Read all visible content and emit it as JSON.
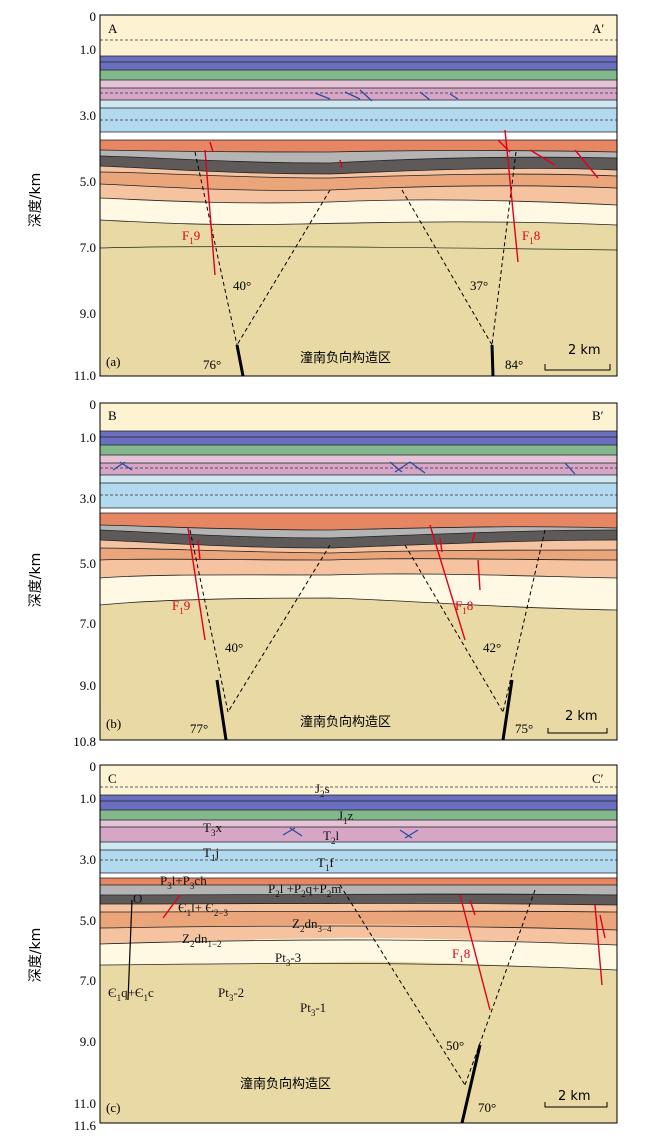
{
  "y_axis_label": "深度/km",
  "region_label": "潼南负向构造区",
  "scale_label": "2 km",
  "colors": {
    "J2s": "#fdf3d3",
    "J1z_top": "#7b7fc4",
    "J1z": "#6a6fbf",
    "J1z_g": "#82b88c",
    "T3x": "#e5c3d6",
    "T2l": "#d6a6c6",
    "T1j": "#cfe7f3",
    "T1f": "#b2d9ed",
    "P3": "#e68663",
    "P2": "#b4b4b4",
    "dark": "#5e5a5a",
    "Z2dn34": "#f6c3a1",
    "Z2dn12": "#eaa57b",
    "Pt3_3": "#fff9e3",
    "Pt3_2": "#faeecd",
    "Pt3_1": "#e8d9a5",
    "fault": "#e0001b",
    "thrust": "#2c4c9a"
  },
  "panels": [
    {
      "id": "a",
      "left_label": "A",
      "right_label": "A′",
      "panel_label": "(a)",
      "ticks": [
        "0",
        "1.0",
        "3.0",
        "5.0",
        "7.0",
        "9.0",
        "11.0"
      ],
      "faults": [
        {
          "label": "F",
          "sub": "1",
          "num": "9"
        },
        {
          "label": "F",
          "sub": "1",
          "num": "8"
        }
      ],
      "angles": {
        "left_cone": "40°",
        "right_cone": "37°",
        "left_dip": "76°",
        "right_dip": "84°"
      }
    },
    {
      "id": "b",
      "left_label": "B",
      "right_label": "B′",
      "panel_label": "(b)",
      "ticks": [
        "0",
        "1.0",
        "3.0",
        "5.0",
        "7.0",
        "9.0",
        "10.8"
      ],
      "faults": [
        {
          "label": "F",
          "sub": "1",
          "num": "9"
        },
        {
          "label": "F",
          "sub": "1",
          "num": "8"
        }
      ],
      "angles": {
        "left_cone": "40°",
        "right_cone": "42°",
        "left_dip": "77°",
        "right_dip": "75°"
      }
    },
    {
      "id": "c",
      "left_label": "C",
      "right_label": "C′",
      "panel_label": "(c)",
      "ticks": [
        "0",
        "1.0",
        "3.0",
        "5.0",
        "7.0",
        "9.0",
        "11.0",
        "11.6"
      ],
      "faults": [
        {
          "label": "F",
          "sub": "1",
          "num": "8"
        }
      ],
      "angles": {
        "cone": "50°",
        "dip": "70°"
      },
      "strata_labels": {
        "J2s": [
          "J",
          "2",
          "s"
        ],
        "J1z": [
          "J",
          "1",
          "z"
        ],
        "T3x": [
          "T",
          "3",
          "x"
        ],
        "T2l": [
          "T",
          "2",
          "l"
        ],
        "T1j": [
          "T",
          "1",
          "j"
        ],
        "T1f": [
          "T",
          "1",
          "f"
        ],
        "P3": [
          "P",
          "3",
          "l+P",
          "3",
          "ch"
        ],
        "P2": [
          "P",
          "2",
          "l +P",
          "2",
          "q+P",
          "2",
          "m"
        ],
        "O": "O",
        "C1": [
          "Є",
          "1",
          "l+ Є",
          "2−3"
        ],
        "Z2dn34": [
          "Z",
          "2",
          "dn",
          "3−4"
        ],
        "Z2dn12": [
          "Z",
          "2",
          "dn",
          "1−2"
        ],
        "Pt3_3": [
          "Pt",
          "3",
          "-3"
        ],
        "Pt3_2": [
          "Pt",
          "3",
          "-2"
        ],
        "Pt3_1": [
          "Pt",
          "3",
          "-1"
        ],
        "Cq": [
          "Є",
          "1",
          "q+Є",
          "1",
          "c"
        ]
      }
    }
  ]
}
